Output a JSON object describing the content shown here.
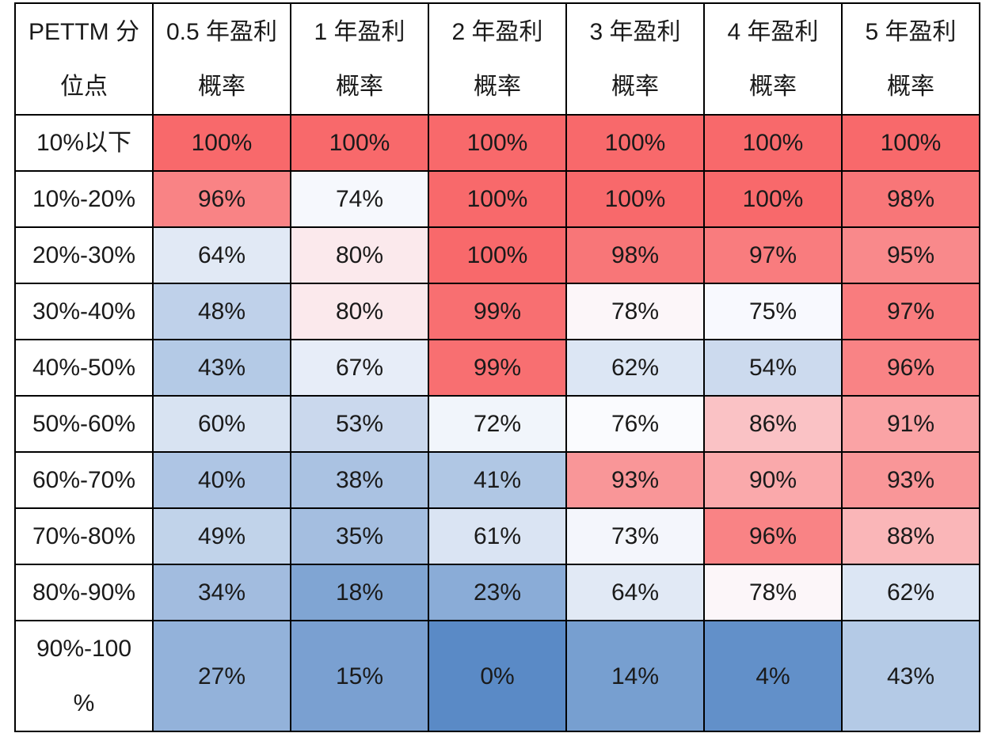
{
  "chart_data": {
    "type": "heatmap",
    "corner_header": [
      "PETTM 分",
      "位点"
    ],
    "columns": [
      [
        "0.5 年盈利",
        "概率"
      ],
      [
        "1 年盈利",
        "概率"
      ],
      [
        "2 年盈利",
        "概率"
      ],
      [
        "3 年盈利",
        "概率"
      ],
      [
        "4 年盈利",
        "概率"
      ],
      [
        "5 年盈利",
        "概率"
      ]
    ],
    "rows": [
      {
        "label": [
          "10%以下"
        ],
        "values": [
          "100%",
          "100%",
          "100%",
          "100%",
          "100%",
          "100%"
        ]
      },
      {
        "label": [
          "10%-20%"
        ],
        "values": [
          "96%",
          "74%",
          "100%",
          "100%",
          "100%",
          "98%"
        ]
      },
      {
        "label": [
          "20%-30%"
        ],
        "values": [
          "64%",
          "80%",
          "100%",
          "98%",
          "97%",
          "95%"
        ]
      },
      {
        "label": [
          "30%-40%"
        ],
        "values": [
          "48%",
          "80%",
          "99%",
          "78%",
          "75%",
          "97%"
        ]
      },
      {
        "label": [
          "40%-50%"
        ],
        "values": [
          "43%",
          "67%",
          "99%",
          "62%",
          "54%",
          "96%"
        ]
      },
      {
        "label": [
          "50%-60%"
        ],
        "values": [
          "60%",
          "53%",
          "72%",
          "76%",
          "86%",
          "91%"
        ]
      },
      {
        "label": [
          "60%-70%"
        ],
        "values": [
          "40%",
          "38%",
          "41%",
          "93%",
          "90%",
          "93%"
        ]
      },
      {
        "label": [
          "70%-80%"
        ],
        "values": [
          "49%",
          "35%",
          "61%",
          "73%",
          "96%",
          "88%"
        ]
      },
      {
        "label": [
          "80%-90%"
        ],
        "values": [
          "34%",
          "18%",
          "23%",
          "64%",
          "78%",
          "62%"
        ]
      },
      {
        "label": [
          "90%-100",
          "%"
        ],
        "values": [
          "27%",
          "15%",
          "0%",
          "14%",
          "4%",
          "43%"
        ]
      }
    ]
  },
  "colors": {
    "low": "#5a8ac6",
    "mid": "#fcfcff",
    "high": "#f8696b"
  }
}
